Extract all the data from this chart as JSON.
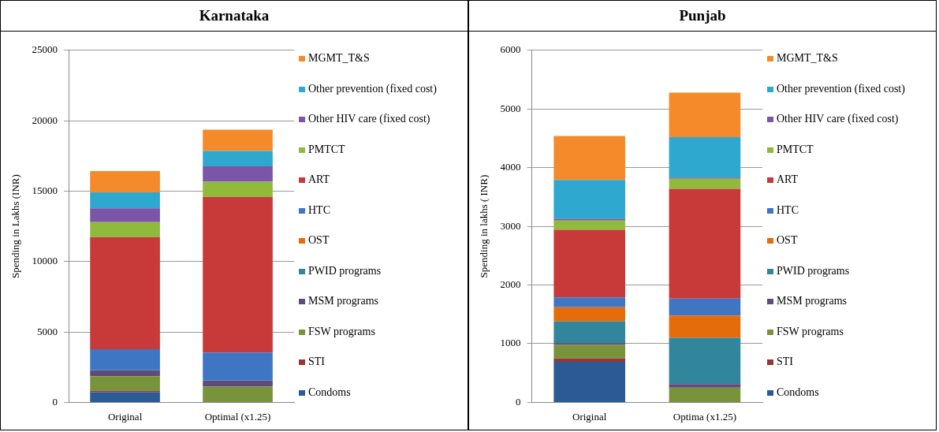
{
  "chart_data": [
    {
      "type": "bar",
      "title": "Karnataka",
      "ylabel": "Spending in Lakhs (INR)",
      "categories": [
        "Original",
        "Optimal (x1.25)"
      ],
      "stacked": true,
      "ylim": [
        0,
        25000
      ],
      "yticks": [
        0,
        5000,
        10000,
        15000,
        20000,
        25000
      ],
      "grid": "y",
      "legend": "right",
      "series": [
        {
          "name": "Condoms",
          "color": "#2c5a94",
          "values": [
            720,
            0
          ]
        },
        {
          "name": "STI",
          "color": "#953735",
          "values": [
            110,
            0
          ]
        },
        {
          "name": "FSW programs",
          "color": "#77933c",
          "values": [
            1020,
            1130
          ]
        },
        {
          "name": "MSM programs",
          "color": "#604a7b",
          "values": [
            410,
            410
          ]
        },
        {
          "name": "PWID programs",
          "color": "#31859c",
          "values": [
            50,
            40
          ]
        },
        {
          "name": "OST",
          "color": "#e46c0a",
          "values": [
            0,
            0
          ]
        },
        {
          "name": "HTC",
          "color": "#3f76c4",
          "values": [
            1460,
            1960
          ]
        },
        {
          "name": "ART",
          "color": "#c8393a",
          "values": [
            7960,
            11050
          ]
        },
        {
          "name": "PMTCT",
          "color": "#8fba3c",
          "values": [
            1070,
            1080
          ]
        },
        {
          "name": "Other HIV care (fixed cost)",
          "color": "#7b55a8",
          "values": [
            980,
            1090
          ]
        },
        {
          "name": "Other prevention (fixed cost)",
          "color": "#2fa8cf",
          "values": [
            1130,
            1090
          ]
        },
        {
          "name": "MGMT_T&S",
          "color": "#f58a2a",
          "values": [
            1510,
            1510
          ]
        }
      ]
    },
    {
      "type": "bar",
      "title": "Punjab",
      "ylabel": "Spending in lakhs ( INR)",
      "categories": [
        "Original",
        "Optima (x1.25)"
      ],
      "stacked": true,
      "ylim": [
        0,
        6000
      ],
      "yticks": [
        0,
        1000,
        2000,
        3000,
        4000,
        5000,
        6000
      ],
      "grid": "y",
      "legend": "right",
      "series": [
        {
          "name": "Condoms",
          "color": "#2c5a94",
          "values": [
            690,
            0
          ]
        },
        {
          "name": "STI",
          "color": "#953735",
          "values": [
            60,
            0
          ]
        },
        {
          "name": "FSW programs",
          "color": "#77933c",
          "values": [
            230,
            250
          ]
        },
        {
          "name": "MSM programs",
          "color": "#604a7b",
          "values": [
            30,
            60
          ]
        },
        {
          "name": "PWID programs",
          "color": "#31859c",
          "values": [
            370,
            790
          ]
        },
        {
          "name": "OST",
          "color": "#e46c0a",
          "values": [
            240,
            380
          ]
        },
        {
          "name": "HTC",
          "color": "#3f76c4",
          "values": [
            170,
            290
          ]
        },
        {
          "name": "ART",
          "color": "#c8393a",
          "values": [
            1150,
            1870
          ]
        },
        {
          "name": "PMTCT",
          "color": "#8fba3c",
          "values": [
            160,
            170
          ]
        },
        {
          "name": "Other HIV care (fixed cost)",
          "color": "#7b55a8",
          "values": [
            30,
            20
          ]
        },
        {
          "name": "Other prevention (fixed cost)",
          "color": "#2fa8cf",
          "values": [
            660,
            690
          ]
        },
        {
          "name": "MGMT_T&S",
          "color": "#f58a2a",
          "values": [
            750,
            760
          ]
        }
      ]
    }
  ]
}
